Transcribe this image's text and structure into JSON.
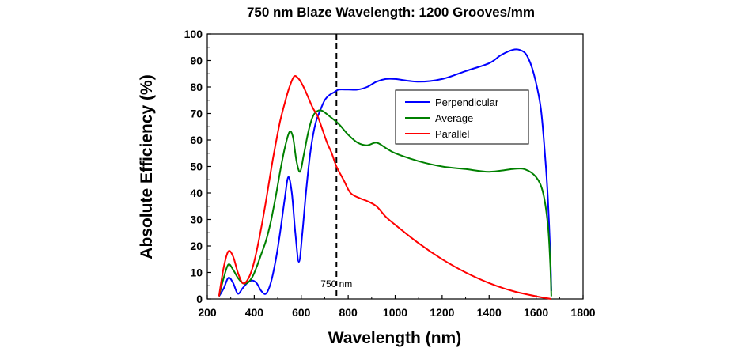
{
  "chart_data": {
    "type": "line",
    "title": "750 nm Blaze Wavelength: 1200 Grooves/mm",
    "xlabel": "Wavelength (nm)",
    "ylabel": "Absolute Efficiency (%)",
    "xlim": [
      200,
      1800
    ],
    "ylim": [
      0,
      100
    ],
    "xticks": [
      "200",
      "400",
      "600",
      "800",
      "1000",
      "1200",
      "1400",
      "1600",
      "1800"
    ],
    "yticks": [
      "0",
      "10",
      "20",
      "30",
      "40",
      "50",
      "60",
      "70",
      "80",
      "90",
      "100"
    ],
    "legend_position": "top-right",
    "annotation": {
      "label": "750 nm",
      "x": 750
    },
    "series": [
      {
        "name": "Perpendicular",
        "color": "#0000ff",
        "points": [
          [
            250,
            1
          ],
          [
            270,
            4
          ],
          [
            290,
            8
          ],
          [
            310,
            6
          ],
          [
            330,
            2
          ],
          [
            350,
            4
          ],
          [
            370,
            6
          ],
          [
            390,
            7
          ],
          [
            410,
            6
          ],
          [
            430,
            3
          ],
          [
            450,
            2
          ],
          [
            470,
            6
          ],
          [
            490,
            14
          ],
          [
            510,
            25
          ],
          [
            530,
            38
          ],
          [
            545,
            46
          ],
          [
            560,
            40
          ],
          [
            575,
            25
          ],
          [
            590,
            14
          ],
          [
            605,
            25
          ],
          [
            620,
            40
          ],
          [
            640,
            56
          ],
          [
            660,
            66
          ],
          [
            680,
            71
          ],
          [
            700,
            75
          ],
          [
            720,
            77
          ],
          [
            740,
            78
          ],
          [
            760,
            79
          ],
          [
            800,
            79
          ],
          [
            840,
            79
          ],
          [
            880,
            80
          ],
          [
            920,
            82
          ],
          [
            960,
            83
          ],
          [
            1000,
            83
          ],
          [
            1100,
            82
          ],
          [
            1200,
            83
          ],
          [
            1300,
            86
          ],
          [
            1400,
            89
          ],
          [
            1450,
            92
          ],
          [
            1500,
            94
          ],
          [
            1530,
            94
          ],
          [
            1560,
            92
          ],
          [
            1590,
            85
          ],
          [
            1620,
            72
          ],
          [
            1640,
            52
          ],
          [
            1650,
            38
          ],
          [
            1660,
            18
          ],
          [
            1665,
            3
          ]
        ]
      },
      {
        "name": "Average",
        "color": "#008000",
        "points": [
          [
            250,
            1
          ],
          [
            270,
            8
          ],
          [
            290,
            13
          ],
          [
            310,
            11
          ],
          [
            330,
            8
          ],
          [
            350,
            6
          ],
          [
            370,
            6
          ],
          [
            390,
            8
          ],
          [
            410,
            12
          ],
          [
            430,
            17
          ],
          [
            450,
            22
          ],
          [
            470,
            29
          ],
          [
            490,
            38
          ],
          [
            510,
            48
          ],
          [
            530,
            57
          ],
          [
            550,
            63
          ],
          [
            565,
            61
          ],
          [
            580,
            52
          ],
          [
            595,
            48
          ],
          [
            610,
            54
          ],
          [
            630,
            63
          ],
          [
            650,
            69
          ],
          [
            670,
            71
          ],
          [
            690,
            71
          ],
          [
            720,
            69
          ],
          [
            760,
            66
          ],
          [
            800,
            62
          ],
          [
            840,
            59
          ],
          [
            880,
            58
          ],
          [
            920,
            59
          ],
          [
            960,
            57
          ],
          [
            1000,
            55
          ],
          [
            1100,
            52
          ],
          [
            1200,
            50
          ],
          [
            1300,
            49
          ],
          [
            1400,
            48
          ],
          [
            1500,
            49
          ],
          [
            1550,
            49
          ],
          [
            1600,
            46
          ],
          [
            1630,
            40
          ],
          [
            1650,
            28
          ],
          [
            1660,
            14
          ],
          [
            1665,
            1
          ]
        ]
      },
      {
        "name": "Parallel",
        "color": "#ff0000",
        "points": [
          [
            250,
            1
          ],
          [
            270,
            12
          ],
          [
            290,
            18
          ],
          [
            310,
            16
          ],
          [
            330,
            10
          ],
          [
            350,
            6
          ],
          [
            370,
            7
          ],
          [
            390,
            11
          ],
          [
            410,
            18
          ],
          [
            430,
            27
          ],
          [
            450,
            37
          ],
          [
            470,
            48
          ],
          [
            490,
            58
          ],
          [
            510,
            67
          ],
          [
            530,
            74
          ],
          [
            550,
            80
          ],
          [
            570,
            84
          ],
          [
            590,
            83
          ],
          [
            610,
            80
          ],
          [
            630,
            76
          ],
          [
            650,
            72
          ],
          [
            670,
            69
          ],
          [
            690,
            64
          ],
          [
            710,
            59
          ],
          [
            730,
            55
          ],
          [
            750,
            50
          ],
          [
            780,
            45
          ],
          [
            810,
            40
          ],
          [
            850,
            38
          ],
          [
            880,
            37
          ],
          [
            920,
            35
          ],
          [
            960,
            31
          ],
          [
            1000,
            28
          ],
          [
            1100,
            21
          ],
          [
            1200,
            15
          ],
          [
            1300,
            10
          ],
          [
            1400,
            6
          ],
          [
            1500,
            3
          ],
          [
            1600,
            1
          ],
          [
            1665,
            0
          ]
        ]
      }
    ]
  }
}
